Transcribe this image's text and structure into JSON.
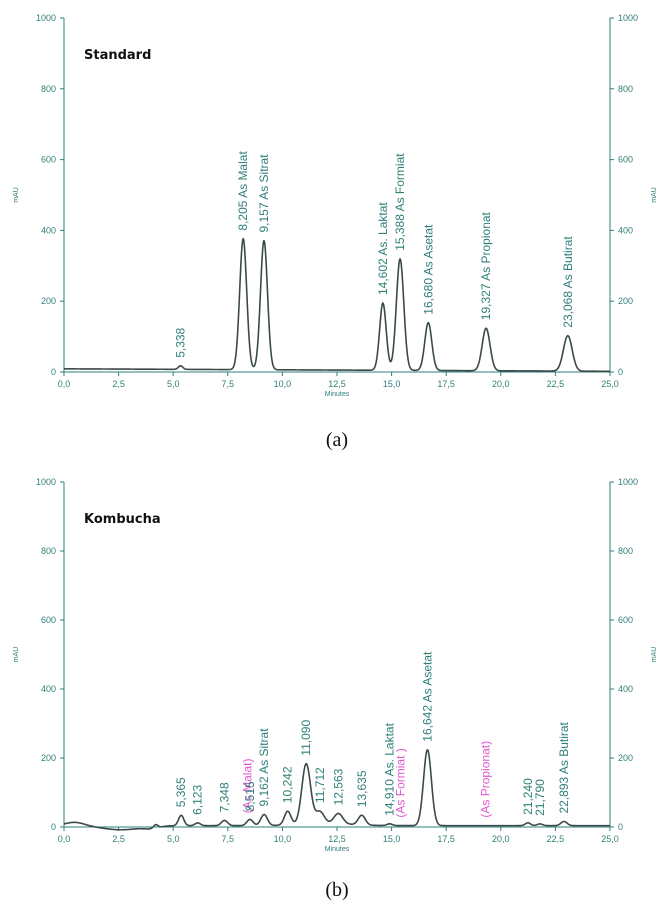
{
  "chart_data": [
    {
      "type": "line",
      "title": "Standard",
      "caption": "(a)",
      "xlabel": "Minutes",
      "ylabel": "mAU",
      "y2label": "mAU",
      "xlim": [
        0,
        25
      ],
      "ylim": [
        0,
        1000
      ],
      "xticks": [
        "0,0",
        "2,5",
        "5,0",
        "7,5",
        "10,0",
        "12,5",
        "15,0",
        "17,5",
        "20,0",
        "22,5",
        "25,0"
      ],
      "yticks": [
        "0",
        "200",
        "400",
        "600",
        "800",
        "1000"
      ],
      "peaks": [
        {
          "rt": 5.338,
          "height": 10,
          "width": 0.1,
          "label": "5,338",
          "missing": false
        },
        {
          "rt": 8.205,
          "height": 370,
          "width": 0.16,
          "label": "8,205  As Malat",
          "missing": false
        },
        {
          "rt": 9.157,
          "height": 365,
          "width": 0.16,
          "label": "9,157  As Sitrat",
          "missing": false
        },
        {
          "rt": 14.602,
          "height": 190,
          "width": 0.15,
          "label": "14,602  As. Laktat",
          "missing": false
        },
        {
          "rt": 15.388,
          "height": 315,
          "width": 0.17,
          "label": "15,388  As Formiat",
          "missing": false
        },
        {
          "rt": 16.68,
          "height": 135,
          "width": 0.16,
          "label": "16,680  As Asetat",
          "missing": false
        },
        {
          "rt": 19.327,
          "height": 120,
          "width": 0.18,
          "label": "19,327  As Propionat",
          "missing": false
        },
        {
          "rt": 23.068,
          "height": 100,
          "width": 0.2,
          "label": "23,068  As Butirat",
          "missing": false
        }
      ]
    },
    {
      "type": "line",
      "title": "Kombucha",
      "caption": "(b)",
      "xlabel": "Minutes",
      "ylabel": "mAU",
      "y2label": "mAU",
      "xlim": [
        0,
        25
      ],
      "ylim": [
        0,
        1000
      ],
      "xticks": [
        "0,0",
        "2,5",
        "5,0",
        "7,5",
        "10,0",
        "12,5",
        "15,0",
        "17,5",
        "20,0",
        "22,5",
        "25,0"
      ],
      "yticks": [
        "0",
        "200",
        "400",
        "600",
        "800",
        "1000"
      ],
      "peaks": [
        {
          "rt": 4.2,
          "height": 10,
          "width": 0.1,
          "label": "",
          "missing": false
        },
        {
          "rt": 5.365,
          "height": 30,
          "width": 0.12,
          "label": "5,365",
          "missing": false
        },
        {
          "rt": 6.123,
          "height": 8,
          "width": 0.12,
          "label": "6,123",
          "missing": false
        },
        {
          "rt": 7.348,
          "height": 15,
          "width": 0.14,
          "label": "7,348",
          "missing": false
        },
        {
          "rt": 8.4,
          "height": 0,
          "width": 0.1,
          "label": "(As Malat)",
          "missing": true
        },
        {
          "rt": 8.515,
          "height": 18,
          "width": 0.14,
          "label": "8,515",
          "missing": false
        },
        {
          "rt": 9.162,
          "height": 32,
          "width": 0.15,
          "label": "9,162  As Sitrat",
          "missing": false
        },
        {
          "rt": 10.242,
          "height": 40,
          "width": 0.15,
          "label": "10,242",
          "missing": false
        },
        {
          "rt": 11.09,
          "height": 175,
          "width": 0.2,
          "label": "11,090",
          "missing": false
        },
        {
          "rt": 11.712,
          "height": 35,
          "width": 0.2,
          "label": "11,712",
          "missing": false
        },
        {
          "rt": 12.563,
          "height": 30,
          "width": 0.2,
          "label": "12,563",
          "missing": false
        },
        {
          "rt": 13.635,
          "height": 28,
          "width": 0.16,
          "label": "13,635",
          "missing": false
        },
        {
          "rt": 14.91,
          "height": 5,
          "width": 0.12,
          "label": "14,910  As. Laktat",
          "missing": false
        },
        {
          "rt": 15.4,
          "height": 0,
          "width": 0.1,
          "label": "(As Formiat )",
          "missing": true
        },
        {
          "rt": 16.642,
          "height": 220,
          "width": 0.18,
          "label": "16,642  As Asetat",
          "missing": false
        },
        {
          "rt": 19.3,
          "height": 0,
          "width": 0.1,
          "label": "(As Propionat)",
          "missing": true
        },
        {
          "rt": 21.24,
          "height": 8,
          "width": 0.12,
          "label": "21,240",
          "missing": false
        },
        {
          "rt": 21.79,
          "height": 5,
          "width": 0.12,
          "label": "21,790",
          "missing": false
        },
        {
          "rt": 22.893,
          "height": 12,
          "width": 0.14,
          "label": "22,893  As Butirat",
          "missing": false
        }
      ]
    }
  ]
}
